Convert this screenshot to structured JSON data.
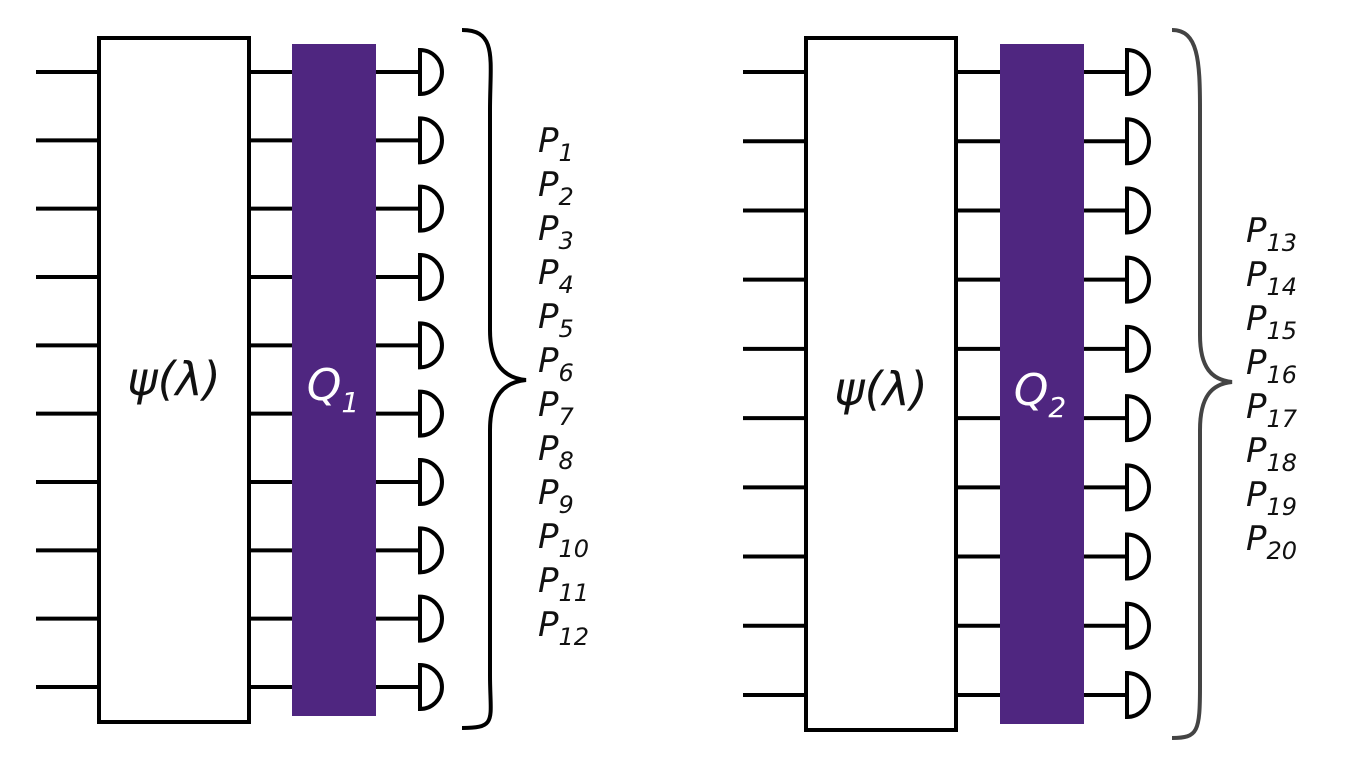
{
  "colors": {
    "gate_fill": "#4f2680",
    "stroke": "#000000",
    "background": "#ffffff"
  },
  "panels": [
    {
      "state_label": "ψ(λ)",
      "gate": {
        "symbol": "Q",
        "subscript": "1"
      },
      "outcomes": [
        {
          "symbol": "P",
          "subscript": "1"
        },
        {
          "symbol": "P",
          "subscript": "2"
        },
        {
          "symbol": "P",
          "subscript": "3"
        },
        {
          "symbol": "P",
          "subscript": "4"
        },
        {
          "symbol": "P",
          "subscript": "5"
        },
        {
          "symbol": "P",
          "subscript": "6"
        },
        {
          "symbol": "P",
          "subscript": "7"
        },
        {
          "symbol": "P",
          "subscript": "8"
        },
        {
          "symbol": "P",
          "subscript": "9"
        },
        {
          "symbol": "P",
          "subscript": "10"
        },
        {
          "symbol": "P",
          "subscript": "11"
        },
        {
          "symbol": "P",
          "subscript": "12"
        }
      ]
    },
    {
      "state_label": "ψ(λ)",
      "gate": {
        "symbol": "Q",
        "subscript": "2"
      },
      "outcomes": [
        {
          "symbol": "P",
          "subscript": "13"
        },
        {
          "symbol": "P",
          "subscript": "14"
        },
        {
          "symbol": "P",
          "subscript": "15"
        },
        {
          "symbol": "P",
          "subscript": "16"
        },
        {
          "symbol": "P",
          "subscript": "17"
        },
        {
          "symbol": "P",
          "subscript": "18"
        },
        {
          "symbol": "P",
          "subscript": "19"
        },
        {
          "symbol": "P",
          "subscript": "20"
        }
      ]
    }
  ]
}
